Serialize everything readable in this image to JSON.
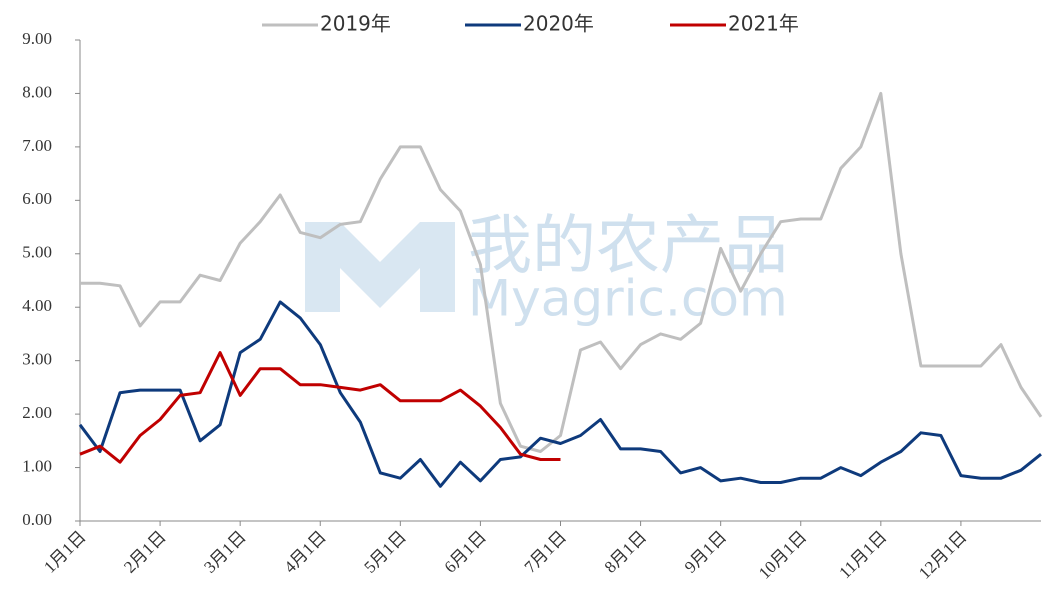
{
  "chart_data": {
    "type": "line",
    "watermark": [
      "我的农产品",
      "Myagric.com"
    ],
    "categories": [
      "1月1日",
      null,
      null,
      null,
      "2月1日",
      null,
      null,
      null,
      "3月1日",
      null,
      null,
      null,
      "4月1日",
      null,
      null,
      null,
      "5月1日",
      null,
      null,
      null,
      "6月1日",
      null,
      null,
      null,
      "7月1日",
      null,
      null,
      null,
      "8月1日",
      null,
      null,
      null,
      "9月1日",
      null,
      null,
      null,
      "10月1日",
      null,
      null,
      null,
      "11月1日",
      null,
      null,
      null,
      "12月1日",
      null,
      null,
      null,
      null
    ],
    "series": [
      {
        "name": "2019年",
        "color": "#bfbfbf",
        "values": [
          4.45,
          4.45,
          4.4,
          3.65,
          4.1,
          4.1,
          4.6,
          4.5,
          5.2,
          5.6,
          6.1,
          5.4,
          5.3,
          5.55,
          5.6,
          6.4,
          7.0,
          7.0,
          6.2,
          5.8,
          4.8,
          2.2,
          1.4,
          1.3,
          1.6,
          3.2,
          3.35,
          2.85,
          3.3,
          3.5,
          3.4,
          3.7,
          5.1,
          4.3,
          5.0,
          5.6,
          5.65,
          5.65,
          6.6,
          7.0,
          8.0,
          5.0,
          2.9,
          2.9,
          2.9,
          2.9,
          3.3,
          2.5,
          1.95
        ]
      },
      {
        "name": "2020年",
        "color": "#0e3a7c",
        "values": [
          1.8,
          1.3,
          2.4,
          2.45,
          2.45,
          2.45,
          1.5,
          1.8,
          3.15,
          3.4,
          4.1,
          3.8,
          3.3,
          2.4,
          1.85,
          0.9,
          0.8,
          1.15,
          0.65,
          1.1,
          0.75,
          1.15,
          1.2,
          1.55,
          1.45,
          1.6,
          1.9,
          1.35,
          1.35,
          1.3,
          0.9,
          1.0,
          0.75,
          0.8,
          0.72,
          0.72,
          0.8,
          0.8,
          1.0,
          0.85,
          1.1,
          1.3,
          1.65,
          1.6,
          0.85,
          0.8,
          0.8,
          0.95,
          1.25
        ]
      },
      {
        "name": "2021年",
        "color": "#c00000",
        "values": [
          1.25,
          1.4,
          1.1,
          1.6,
          1.9,
          2.35,
          2.4,
          3.15,
          2.35,
          2.85,
          2.85,
          2.55,
          2.55,
          2.5,
          2.45,
          2.55,
          2.25,
          2.25,
          2.25,
          2.45,
          2.15,
          1.75,
          1.25,
          1.15,
          1.15,
          null,
          null,
          null,
          null,
          null,
          null,
          null,
          null,
          null,
          null,
          null,
          null,
          null,
          null,
          null,
          null,
          null,
          null,
          null,
          null,
          null,
          null,
          null,
          null
        ]
      }
    ],
    "ylim": [
      0,
      9
    ],
    "yticks": [
      {
        "value": 0,
        "label": "0.00"
      },
      {
        "value": 1,
        "label": "1.00"
      },
      {
        "value": 2,
        "label": "2.00"
      },
      {
        "value": 3,
        "label": "3.00"
      },
      {
        "value": 4,
        "label": "4.00"
      },
      {
        "value": 5,
        "label": "5.00"
      },
      {
        "value": 6,
        "label": "6.00"
      },
      {
        "value": 7,
        "label": "7.00"
      },
      {
        "value": 8,
        "label": "8.00"
      },
      {
        "value": 9,
        "label": "9.00"
      }
    ],
    "legend": "top"
  }
}
